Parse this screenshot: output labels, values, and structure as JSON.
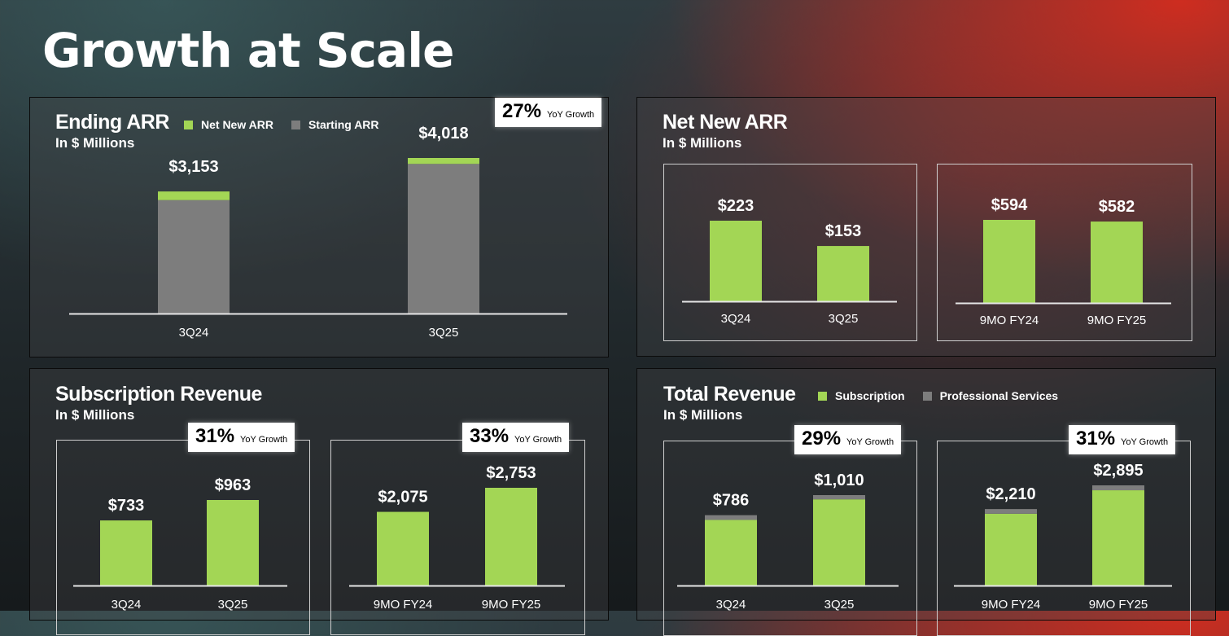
{
  "page": {
    "title": "Growth at Scale"
  },
  "colors": {
    "green": "#a3d655",
    "gray": "#7d7d7d"
  },
  "yoy_suffix": "YoY Growth",
  "ending_arr": {
    "title": "Ending ARR",
    "subtitle": "In $ Millions",
    "yoy": "27%"
  },
  "net_new_arr": {
    "title": "Net New ARR",
    "subtitle": "In $ Millions"
  },
  "subscription_revenue": {
    "title": "Subscription Revenue",
    "subtitle": "In $ Millions",
    "yoy_quarter": "31%",
    "yoy_9mo": "33%"
  },
  "total_revenue": {
    "title": "Total Revenue",
    "subtitle": "In $ Millions",
    "yoy_quarter": "29%",
    "yoy_9mo": "31%"
  },
  "chart_data": [
    {
      "id": "ending-arr",
      "type": "bar",
      "stacked": true,
      "categories": [
        "3Q24",
        "3Q25"
      ],
      "series": [
        {
          "name": "Starting ARR",
          "values": [
            2930,
            3865
          ]
        },
        {
          "name": "Net New ARR",
          "values": [
            223,
            153
          ]
        }
      ],
      "labels": [
        "$3,153",
        "$4,018"
      ],
      "ylim": [
        0,
        4018
      ]
    },
    {
      "id": "net-new-arr-quarter",
      "type": "bar",
      "categories": [
        "3Q24",
        "3Q25"
      ],
      "values": [
        223,
        153
      ],
      "labels": [
        "$223",
        "$153"
      ],
      "ylim": [
        0,
        223
      ]
    },
    {
      "id": "net-new-arr-9mo",
      "type": "bar",
      "categories": [
        "9MO FY24",
        "9MO FY25"
      ],
      "values": [
        594,
        582
      ],
      "labels": [
        "$594",
        "$582"
      ],
      "ylim": [
        0,
        594
      ]
    },
    {
      "id": "subscription-revenue-quarter",
      "type": "bar",
      "categories": [
        "3Q24",
        "3Q25"
      ],
      "values": [
        733,
        963
      ],
      "labels": [
        "$733",
        "$963"
      ],
      "ylim": [
        0,
        963
      ]
    },
    {
      "id": "subscription-revenue-9mo",
      "type": "bar",
      "categories": [
        "9MO FY24",
        "9MO FY25"
      ],
      "values": [
        2075,
        2753
      ],
      "labels": [
        "$2,075",
        "$2,753"
      ],
      "ylim": [
        0,
        2753
      ]
    },
    {
      "id": "total-revenue-quarter",
      "type": "bar",
      "stacked": true,
      "categories": [
        "3Q24",
        "3Q25"
      ],
      "series": [
        {
          "name": "Subscription",
          "values": [
            733,
            963
          ]
        },
        {
          "name": "Professional Services",
          "values": [
            53,
            47
          ]
        }
      ],
      "labels": [
        "$786",
        "$1,010"
      ],
      "ylim": [
        0,
        1010
      ]
    },
    {
      "id": "total-revenue-9mo",
      "type": "bar",
      "stacked": true,
      "categories": [
        "9MO FY24",
        "9MO FY25"
      ],
      "series": [
        {
          "name": "Subscription",
          "values": [
            2075,
            2753
          ]
        },
        {
          "name": "Professional Services",
          "values": [
            135,
            142
          ]
        }
      ],
      "labels": [
        "$2,210",
        "$2,895"
      ],
      "ylim": [
        0,
        2895
      ]
    }
  ]
}
